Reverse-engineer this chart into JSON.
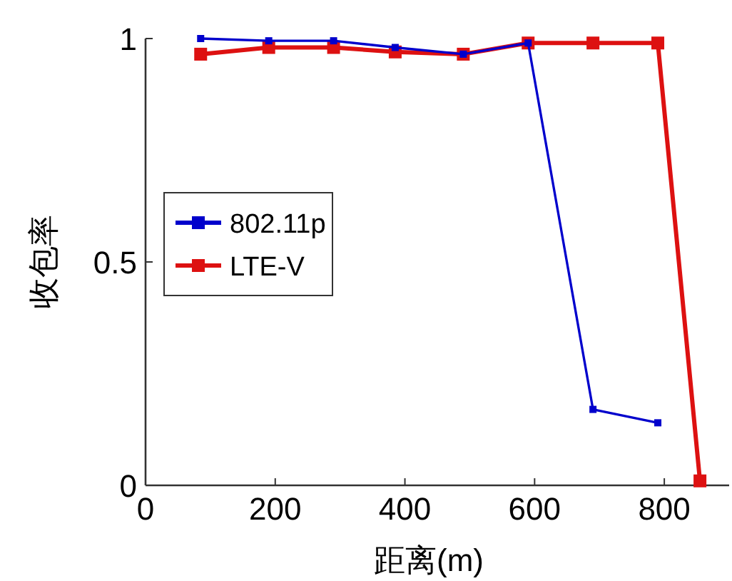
{
  "chart_data": {
    "type": "line",
    "xlabel": "距离(m)",
    "ylabel": "收包率",
    "xlim": [
      0,
      900
    ],
    "xticks": [
      0,
      200,
      400,
      600,
      800
    ],
    "ylim": [
      0,
      1
    ],
    "yticks": [
      0,
      0.5,
      1
    ],
    "marker": "square",
    "line_style": "solid",
    "legend": "left",
    "grid": false,
    "series": [
      {
        "name": "802.11p",
        "color": "#0000cc",
        "x": [
          85,
          190,
          290,
          385,
          490,
          590,
          690,
          790
        ],
        "values": [
          1.0,
          0.995,
          0.995,
          0.98,
          0.965,
          0.99,
          0.17,
          0.14
        ]
      },
      {
        "name": "LTE-V",
        "color": "#dd1111",
        "x": [
          85,
          190,
          290,
          385,
          490,
          590,
          690,
          790,
          855
        ],
        "values": [
          0.965,
          0.98,
          0.98,
          0.97,
          0.965,
          0.99,
          0.99,
          0.99,
          0.01
        ]
      }
    ]
  }
}
